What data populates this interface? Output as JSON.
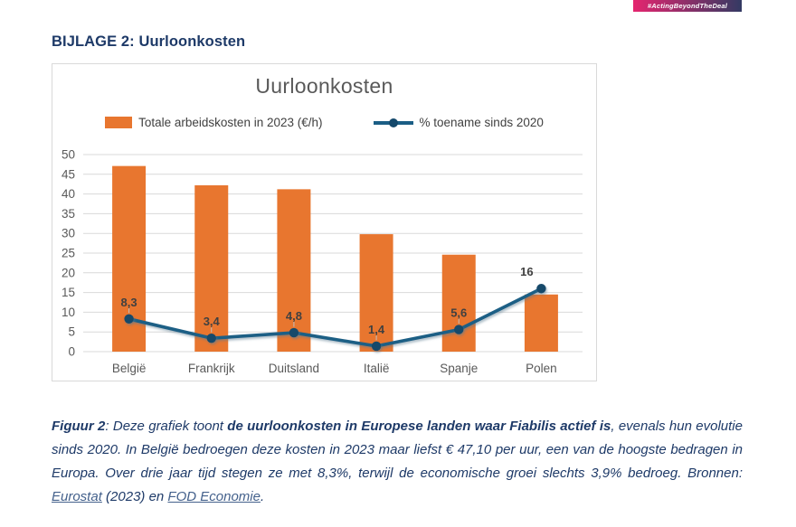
{
  "badge": {
    "label": "#ActingBeyondTheDeal",
    "gradient_from": "#E5256F",
    "gradient_to": "#333A63"
  },
  "heading": "BIJLAGE 2: Uurloonkosten",
  "chart_data": {
    "type": "combo",
    "title": "Uurloonkosten",
    "categories": [
      "België",
      "Frankrijk",
      "Duitsland",
      "Italië",
      "Spanje",
      "Polen"
    ],
    "series": [
      {
        "name": "Totale arbeidskosten in 2023 (€/h)",
        "type": "bar",
        "values": [
          47.1,
          42.2,
          41.2,
          29.8,
          24.6,
          14.5
        ],
        "color": "#E8762F"
      },
      {
        "name": "% toename sinds 2020",
        "type": "line",
        "values": [
          8.3,
          3.4,
          4.8,
          1.4,
          5.6,
          16
        ],
        "labels": [
          "8,3",
          "3,4",
          "4,8",
          "1,4",
          "5,6",
          "16"
        ],
        "label_dx": [
          0,
          0,
          0,
          0,
          0,
          -16
        ],
        "color": "#1B5E85",
        "marker_color": "#14486B"
      }
    ],
    "ylabel": "",
    "xlabel": "",
    "ylim": [
      0,
      50
    ],
    "ytick_step": 5,
    "grid": true,
    "legend_position": "top",
    "gridline_color": "#D9D9D9",
    "axis_text_color": "#595959",
    "data_label_color": "#404040"
  },
  "caption": {
    "figure_label": "Figuur 2",
    "part1": ": Deze grafiek toont ",
    "bold1": "de uurloonkosten in Europese landen waar Fiabilis actief is",
    "part2": ", evenals hun evolutie sinds 2020. In België bedroegen deze kosten in 2023 maar liefst € 47,10 per uur, een van de hoogste bedragen in Europa. Over drie jaar tijd stegen ze met 8,3%, terwijl de economische groei slechts 3,9% bedroeg. Bronnen: ",
    "link1": "Eurostat",
    "part3": " (2023) en ",
    "link2": "FOD Economie",
    "part4": "."
  }
}
